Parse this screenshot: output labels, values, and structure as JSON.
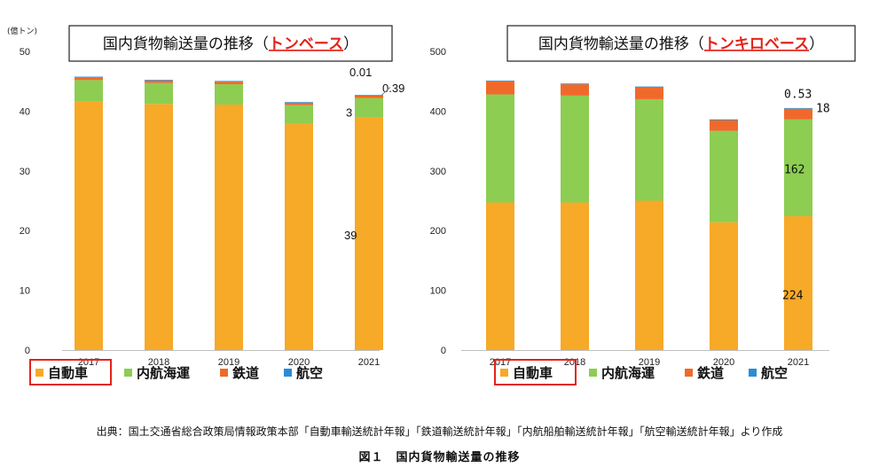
{
  "colors": {
    "jidousha": "#f7a928",
    "naikou": "#8dcd52",
    "tetsudo": "#ef6a2a",
    "kouku": "#2a8dd4",
    "highlight": "#e2231a"
  },
  "legend": [
    "自動車",
    "内航海運",
    "鉄道",
    "航空"
  ],
  "source_text": "出典：国土交通省総合政策局情報政策本部「自動車輸送統計年報」「鉄道輸送統計年報」「内航船舶輸送統計年報」「航空輸送統計年報」より作成",
  "figure_caption": "図１　国内貨物輸送量の推移",
  "chart_data": [
    {
      "type": "bar",
      "stacked": true,
      "title_prefix": "国内貨物輸送量の推移（",
      "title_highlight": "トンベース",
      "title_suffix": "）",
      "unit_label": "(億トン)",
      "categories": [
        "2017",
        "2018",
        "2019",
        "2020",
        "2021"
      ],
      "ylim": [
        0,
        50
      ],
      "yticks": [
        "0",
        "10",
        "20",
        "30",
        "40",
        "50"
      ],
      "series": [
        {
          "name": "自動車",
          "values": [
            41.6,
            41.2,
            41.1,
            37.9,
            38.9
          ]
        },
        {
          "name": "内航海運",
          "values": [
            3.6,
            3.5,
            3.4,
            3.1,
            3.3
          ]
        },
        {
          "name": "鉄道",
          "values": [
            0.45,
            0.43,
            0.43,
            0.39,
            0.39
          ]
        },
        {
          "name": "航空",
          "values": [
            0.01,
            0.01,
            0.01,
            0.01,
            0.01
          ]
        }
      ],
      "annotations": [
        {
          "text": "0.01",
          "category": "2021",
          "series": "航空"
        },
        {
          "text": "0.39",
          "category": "2021",
          "series": "鉄道"
        },
        {
          "text": "3",
          "category": "2021",
          "series": "内航海運"
        },
        {
          "text": "39",
          "category": "2021",
          "series": "自動車"
        }
      ]
    },
    {
      "type": "bar",
      "stacked": true,
      "title_prefix": "国内貨物輸送量の推移（",
      "title_highlight": "トンキロベース",
      "title_suffix": "）",
      "unit_label": "",
      "categories": [
        "2017",
        "2018",
        "2019",
        "2020",
        "2021"
      ],
      "ylim": [
        0,
        500
      ],
      "yticks": [
        "0",
        "100",
        "200",
        "300",
        "400",
        "500"
      ],
      "series": [
        {
          "name": "自動車",
          "values": [
            247,
            247,
            250,
            214,
            224
          ]
        },
        {
          "name": "内航海運",
          "values": [
            181,
            179,
            170,
            153,
            162
          ]
        },
        {
          "name": "鉄道",
          "values": [
            22,
            19,
            20,
            18,
            18
          ]
        },
        {
          "name": "航空",
          "values": [
            1,
            1,
            1,
            0.5,
            0.53
          ]
        }
      ],
      "annotations": [
        {
          "text": "0.53",
          "category": "2021",
          "series": "航空"
        },
        {
          "text": "18",
          "category": "2021",
          "series": "鉄道"
        },
        {
          "text": "162",
          "category": "2021",
          "series": "内航海運"
        },
        {
          "text": "224",
          "category": "2021",
          "series": "自動車"
        }
      ]
    }
  ]
}
